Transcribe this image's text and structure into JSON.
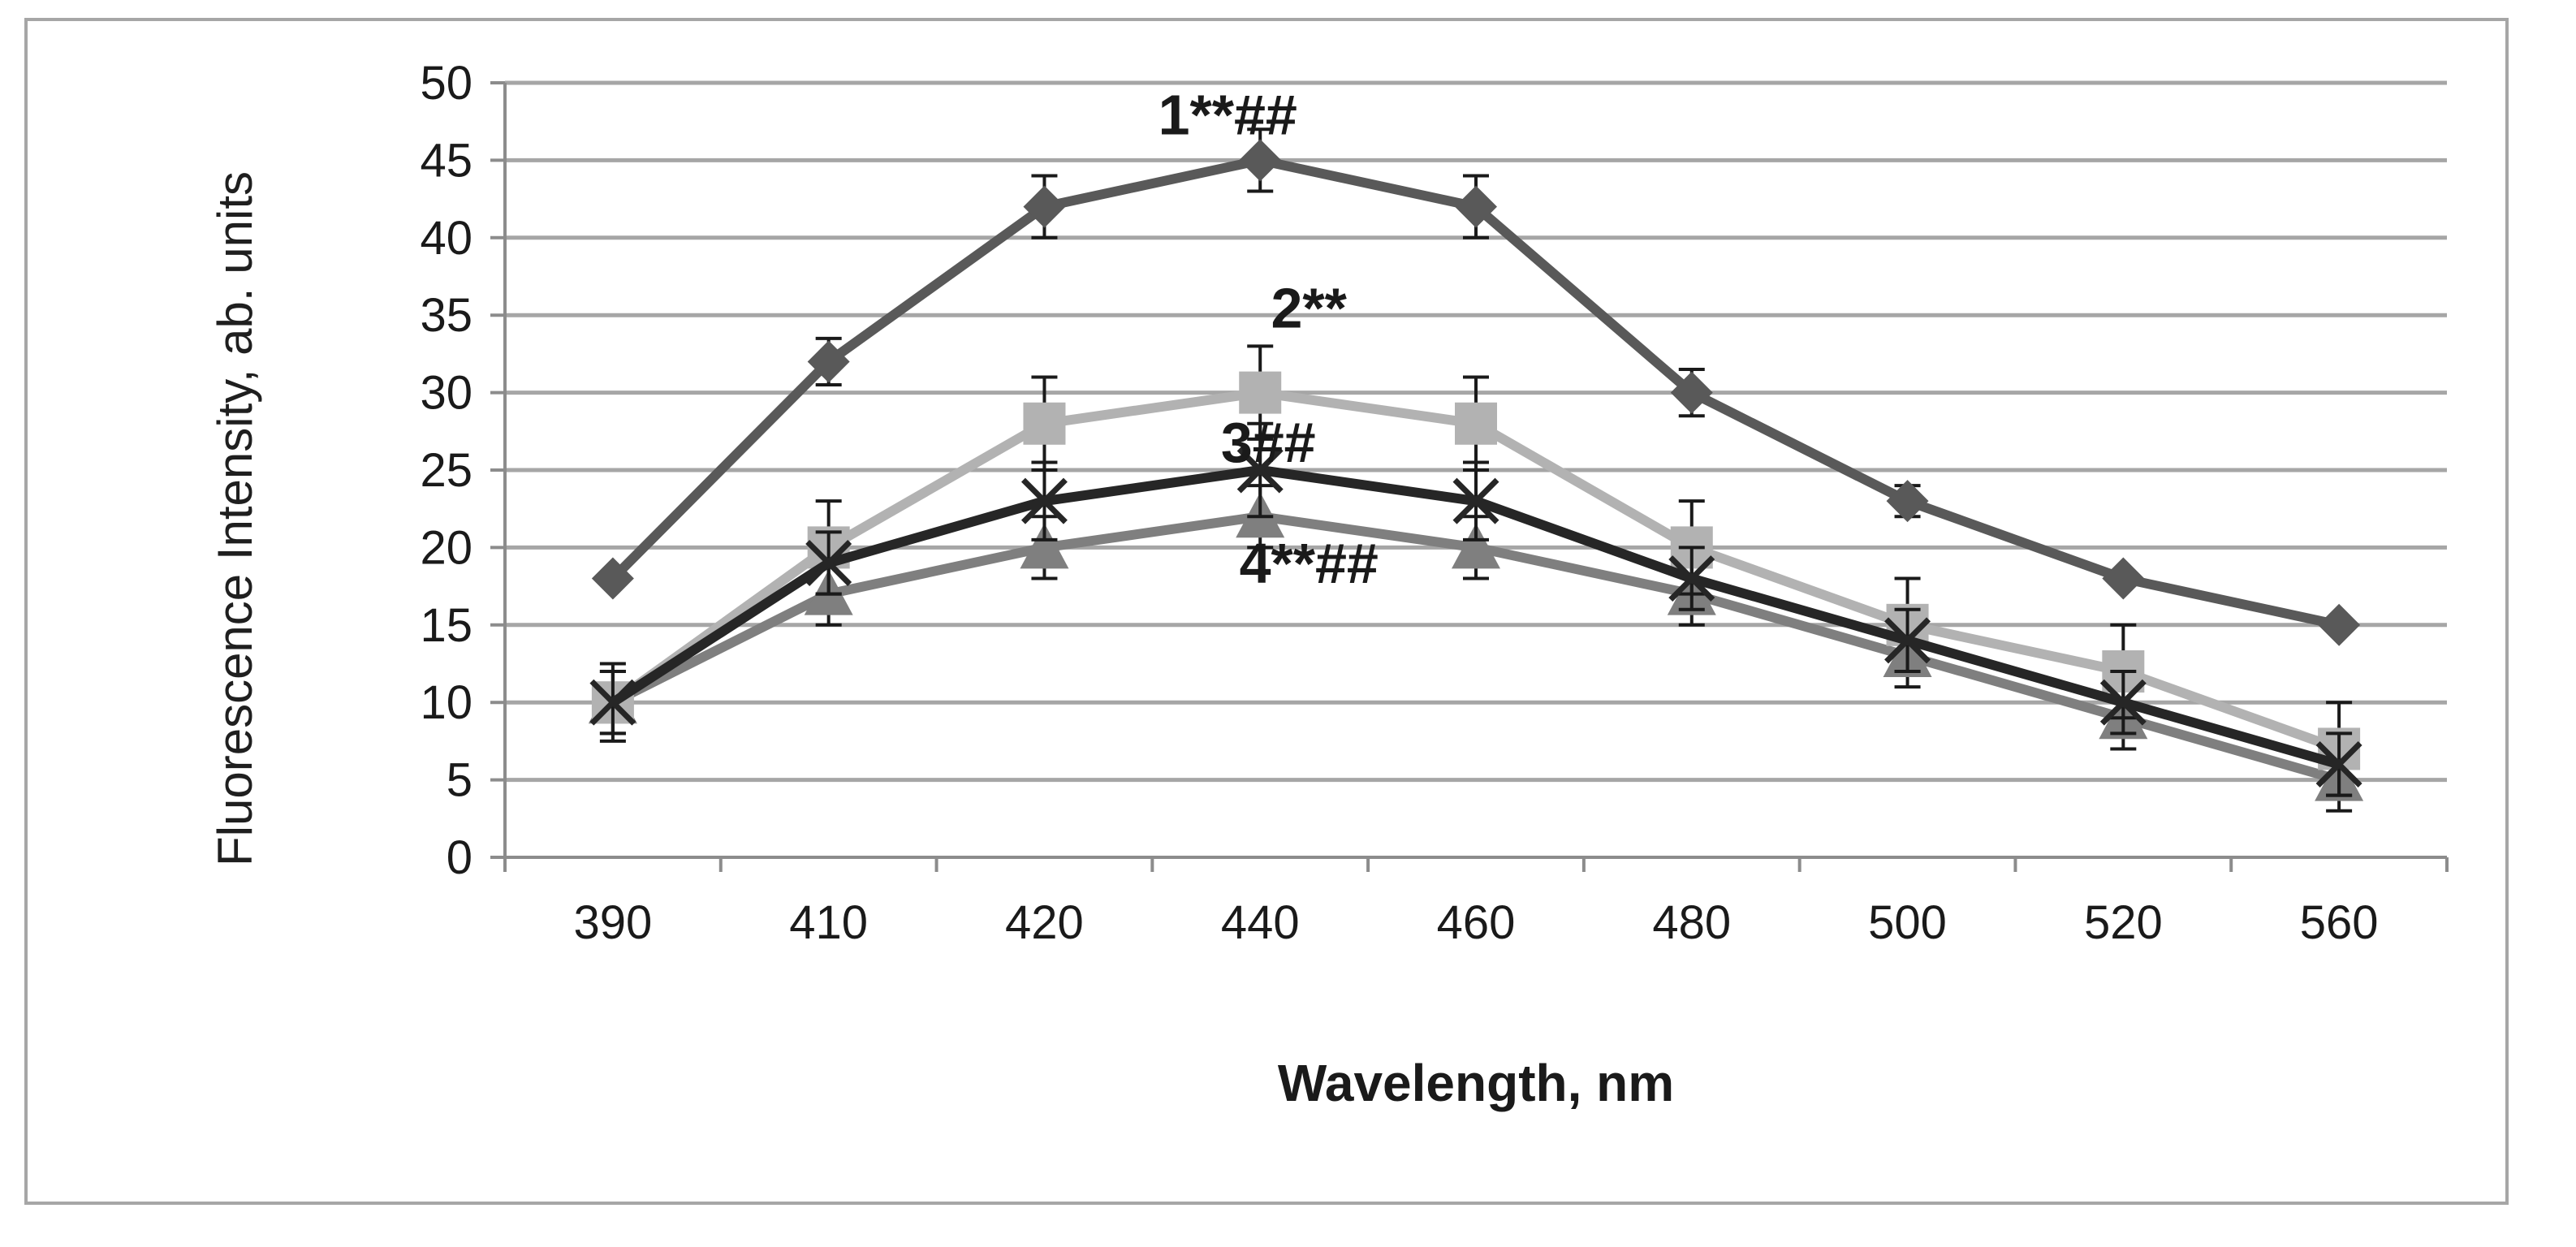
{
  "chart_data": {
    "type": "line",
    "xlabel": "Wavelength, nm",
    "ylabel": "Fluorescence Intensity, ab. units",
    "categories": [
      "390",
      "410",
      "420",
      "440",
      "460",
      "480",
      "500",
      "520",
      "560"
    ],
    "ylim": [
      0,
      50
    ],
    "yticks": [
      0,
      5,
      10,
      15,
      20,
      25,
      30,
      35,
      40,
      45,
      50
    ],
    "grid": "horizontal",
    "series": [
      {
        "label": "1**##",
        "marker": "diamond",
        "color": "#595959",
        "values": [
          18,
          32,
          42,
          45,
          42,
          30,
          23,
          18,
          15
        ],
        "errors": [
          0,
          1.5,
          2,
          2,
          2,
          1.5,
          1,
          0,
          0
        ]
      },
      {
        "label": "2**",
        "marker": "square",
        "color": "#b2b2b2",
        "values": [
          10,
          20,
          28,
          30,
          28,
          20,
          15,
          12,
          7
        ],
        "errors": [
          2.5,
          3,
          3,
          3,
          3,
          3,
          3,
          3,
          3
        ]
      },
      {
        "label": "3##",
        "marker": "x",
        "color": "#262626",
        "values": [
          10,
          19,
          23,
          25,
          23,
          18,
          14,
          10,
          6
        ],
        "errors": [
          2,
          2,
          2.5,
          3,
          2.5,
          2,
          2,
          2,
          2
        ]
      },
      {
        "label": "4**##",
        "marker": "triangle",
        "color": "#7f7f7f",
        "values": [
          10,
          17,
          20,
          22,
          20,
          17,
          13,
          9,
          5
        ],
        "errors": [
          2,
          2,
          2,
          2,
          2,
          2,
          2,
          2,
          2
        ]
      }
    ],
    "annotations": [
      {
        "text": "1**##",
        "series": 0,
        "point": 3
      },
      {
        "text": "2**",
        "series": 1,
        "point": 3
      },
      {
        "text": "3##",
        "series": 2,
        "point": 3
      },
      {
        "text": "4**##",
        "series": 3,
        "point": 3
      }
    ]
  }
}
